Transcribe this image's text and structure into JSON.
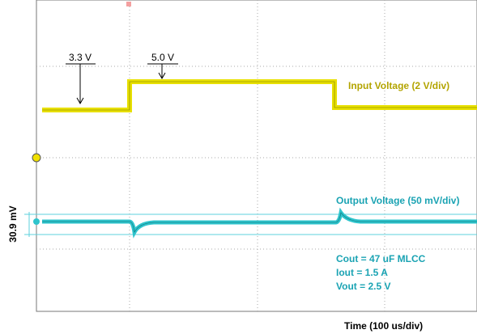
{
  "scope": {
    "input_markers": [
      "3.3 V",
      "5.0 V"
    ],
    "input_label": "Input Voltage (2 V/div)",
    "output_label": "Output Voltage (50 mV/div)",
    "cursor_label": "30.9 mV",
    "conditions": [
      "Cout = 47 uF MLCC",
      "Iout = 1.5 A",
      "Vout = 2.5 V"
    ],
    "time_label": "Time (100 us/div)"
  }
}
